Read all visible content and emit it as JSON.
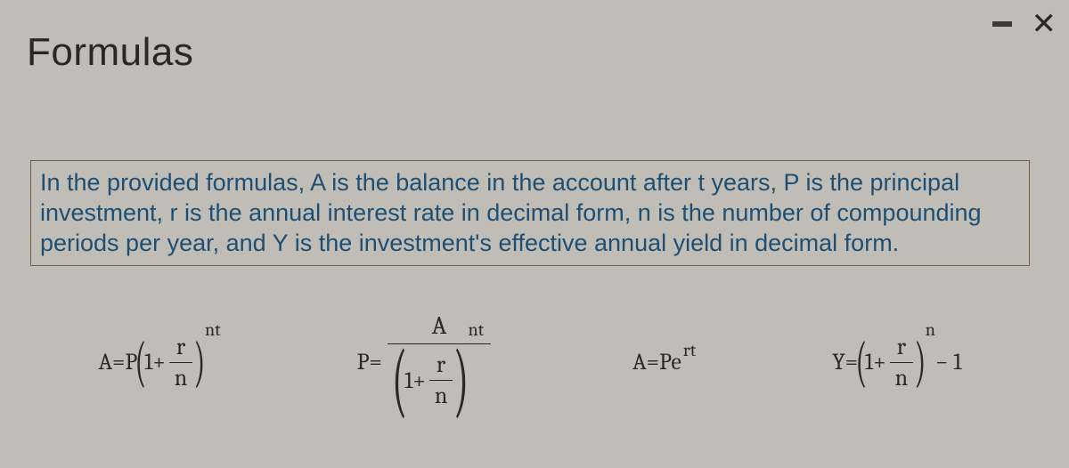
{
  "window": {
    "title": "Formulas"
  },
  "description": "In the provided formulas, A is the balance in the account after t years, P is the principal investment, r is the annual interest rate in decimal form, n is the number of compounding periods per year, and Y is the investment's effective annual yield in decimal form.",
  "formulas": {
    "f1": {
      "lhs": "A",
      "eq": " = ",
      "coef": "P",
      "one": "1",
      "plus": " + ",
      "r": "r",
      "n": "n",
      "exp": "nt"
    },
    "f2": {
      "lhs": "P",
      "eq": " = ",
      "A": "A",
      "one": "1",
      "plus": " + ",
      "r": "r",
      "n": "n",
      "exp": "nt"
    },
    "f3": {
      "lhs": "A",
      "eq": " = ",
      "rhs_pre": "Pe",
      "exp": "rt"
    },
    "f4": {
      "lhs": "Y",
      "eq": " = ",
      "one": "1",
      "plus": " + ",
      "r": "r",
      "n": "n",
      "exp": "n",
      "tail": " − 1"
    }
  }
}
